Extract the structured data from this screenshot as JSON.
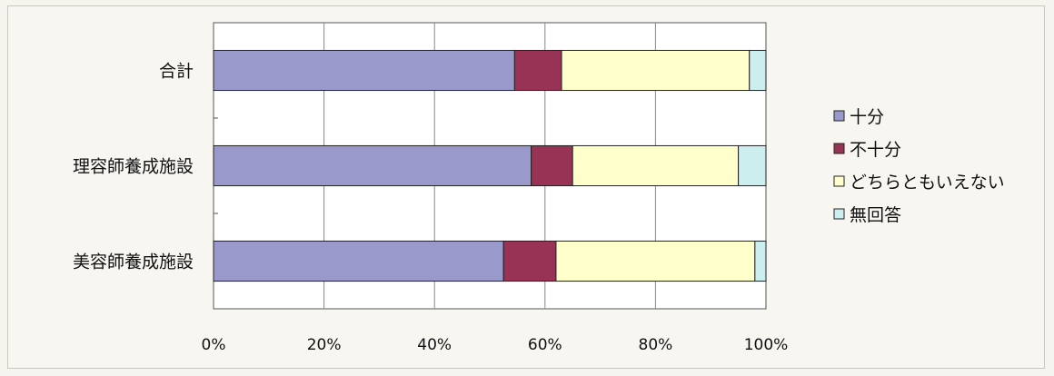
{
  "chart_data": {
    "type": "bar",
    "orientation": "horizontal",
    "stacked": "percent",
    "categories": [
      "合計",
      "理容師養成施設",
      "美容師養成施設"
    ],
    "series": [
      {
        "name": "十分",
        "color": "#9999cc",
        "values": [
          54.5,
          57.5,
          52.5
        ]
      },
      {
        "name": "不十分",
        "color": "#993355",
        "values": [
          8.5,
          7.5,
          9.5
        ]
      },
      {
        "name": "どちらともいえない",
        "color": "#ffffcc",
        "values": [
          34,
          30,
          36
        ]
      },
      {
        "name": "無回答",
        "color": "#cceeee",
        "values": [
          3,
          5,
          2
        ]
      }
    ],
    "xlim": [
      0,
      100
    ],
    "xticks": [
      "0%",
      "20%",
      "40%",
      "60%",
      "80%",
      "100%"
    ],
    "grid": true,
    "legend": "right"
  }
}
